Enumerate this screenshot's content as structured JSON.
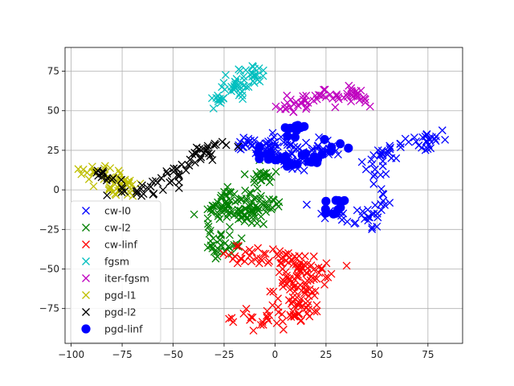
{
  "chart_data": {
    "type": "scatter",
    "title": "",
    "xlabel": "",
    "ylabel": "",
    "xlim": [
      -103,
      92
    ],
    "ylim": [
      -97,
      90
    ],
    "xticks": [
      -100,
      -75,
      -50,
      -25,
      0,
      25,
      50,
      75
    ],
    "yticks": [
      -75,
      -50,
      -25,
      0,
      25,
      50,
      75
    ],
    "grid": true,
    "legend_position": "lower-left",
    "series": [
      {
        "name": "cw-l0",
        "marker": "x",
        "color": "#0000ff",
        "clusters": [
          {
            "path": [
              [
                -18,
                30
              ],
              [
                -5,
                28
              ],
              [
                10,
                27
              ],
              [
                28,
                25
              ]
            ],
            "spread": 3.2,
            "count": 70
          },
          {
            "path": [
              [
                -2,
                24
              ],
              [
                5,
                18
              ],
              [
                12,
                13
              ]
            ],
            "spread": 3.0,
            "count": 35
          },
          {
            "path": [
              [
                20,
                -12
              ],
              [
                35,
                -16
              ],
              [
                48,
                -17
              ],
              [
                55,
                -5
              ],
              [
                50,
                8
              ],
              [
                48,
                18
              ],
              [
                55,
                25
              ],
              [
                70,
                30
              ],
              [
                84,
                36
              ]
            ],
            "spread": 3.0,
            "count": 90
          }
        ]
      },
      {
        "name": "cw-l2",
        "marker": "x",
        "color": "#008000",
        "clusters": [
          {
            "path": [
              [
                -30,
                -12
              ],
              [
                -22,
                -18
              ],
              [
                -12,
                -15
              ],
              [
                -3,
                -12
              ],
              [
                -15,
                -8
              ],
              [
                -25,
                -5
              ]
            ],
            "spread": 4.5,
            "count": 110
          },
          {
            "path": [
              [
                -30,
                -28
              ],
              [
                -28,
                -40
              ],
              [
                -22,
                -34
              ]
            ],
            "spread": 3.5,
            "count": 30
          },
          {
            "path": [
              [
                -10,
                5
              ],
              [
                -5,
                10
              ],
              [
                -2,
                15
              ]
            ],
            "spread": 3.0,
            "count": 20
          }
        ]
      },
      {
        "name": "cw-linf",
        "marker": "x",
        "color": "#ff0000",
        "clusters": [
          {
            "path": [
              [
                -22,
                -38
              ],
              [
                -10,
                -45
              ],
              [
                5,
                -42
              ],
              [
                15,
                -48
              ],
              [
                5,
                -55
              ],
              [
                12,
                -62
              ],
              [
                22,
                -60
              ],
              [
                25,
                -50
              ]
            ],
            "spread": 4.0,
            "count": 110
          },
          {
            "path": [
              [
                0,
                -65
              ],
              [
                10,
                -70
              ],
              [
                18,
                -75
              ],
              [
                8,
                -80
              ],
              [
                -5,
                -82
              ],
              [
                -20,
                -80
              ]
            ],
            "spread": 3.5,
            "count": 60
          }
        ]
      },
      {
        "name": "fgsm",
        "marker": "x",
        "color": "#00bfbf",
        "clusters": [
          {
            "path": [
              [
                -30,
                55
              ],
              [
                -22,
                62
              ],
              [
                -14,
                70
              ],
              [
                -6,
                78
              ]
            ],
            "spread": 3.0,
            "count": 60
          }
        ]
      },
      {
        "name": "iter-fgsm",
        "marker": "x",
        "color": "#bf00bf",
        "clusters": [
          {
            "path": [
              [
                3,
                52
              ],
              [
                15,
                56
              ],
              [
                28,
                58
              ],
              [
                40,
                61
              ],
              [
                45,
                57
              ]
            ],
            "spread": 3.0,
            "count": 60
          }
        ]
      },
      {
        "name": "pgd-l1",
        "marker": "x",
        "color": "#bfbf00",
        "clusters": [
          {
            "path": [
              [
                -92,
                12
              ],
              [
                -85,
                10
              ],
              [
                -78,
                5
              ],
              [
                -72,
                0
              ]
            ],
            "spread": 3.5,
            "count": 55
          }
        ]
      },
      {
        "name": "pgd-l2",
        "marker": "x",
        "color": "#000000",
        "clusters": [
          {
            "path": [
              [
                -88,
                12
              ],
              [
                -82,
                8
              ],
              [
                -75,
                3
              ],
              [
                -65,
                -2
              ],
              [
                -55,
                3
              ],
              [
                -45,
                15
              ],
              [
                -38,
                22
              ],
              [
                -30,
                28
              ],
              [
                -22,
                30
              ]
            ],
            "spread": 3.0,
            "count": 75
          }
        ]
      },
      {
        "name": "pgd-linf",
        "marker": "o",
        "color": "#0000ff",
        "clusters": [
          {
            "path": [
              [
                -10,
                22
              ],
              [
                0,
                20
              ],
              [
                8,
                18
              ],
              [
                14,
                20
              ],
              [
                22,
                22
              ],
              [
                30,
                26
              ]
            ],
            "spread": 2.5,
            "count": 30
          },
          {
            "path": [
              [
                5,
                30
              ],
              [
                8,
                36
              ],
              [
                12,
                42
              ]
            ],
            "spread": 2.0,
            "count": 10
          },
          {
            "path": [
              [
                22,
                -10
              ],
              [
                35,
                -12
              ]
            ],
            "spread": 2.5,
            "count": 10
          }
        ]
      }
    ]
  }
}
